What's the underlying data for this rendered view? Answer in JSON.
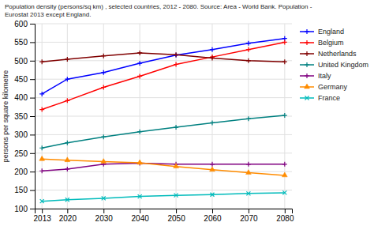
{
  "chart_data": {
    "type": "line",
    "title": "Population density (persons/sq km) , selected countries, 2012 - 2080. Source: Area - World Bank. Population -\nEurostat 2013 except England.",
    "ylabel": "persons per square kilometre",
    "x": [
      2013,
      2020,
      2030,
      2040,
      2050,
      2060,
      2070,
      2080
    ],
    "xlim": [
      2011,
      2082
    ],
    "xticks": [
      2013,
      2020,
      2030,
      2040,
      2050,
      2060,
      2070,
      2080
    ],
    "ylim": [
      100,
      600
    ],
    "yticks": [
      100,
      150,
      200,
      250,
      300,
      350,
      400,
      450,
      500,
      550,
      600
    ],
    "grid": true,
    "legend": "right",
    "series": [
      {
        "name": "England",
        "color": "#0000FF",
        "marker": "plus",
        "line_style": "solid",
        "values": [
          410,
          450,
          468,
          493,
          515,
          530,
          547,
          560
        ]
      },
      {
        "name": "Belgium",
        "color": "#FF0000",
        "marker": "plus",
        "line_style": "solid",
        "values": [
          368,
          392,
          428,
          458,
          490,
          510,
          530,
          550
        ]
      },
      {
        "name": "Netherlands",
        "color": "#800000",
        "marker": "plus",
        "line_style": "solid",
        "values": [
          497,
          504,
          513,
          521,
          516,
          507,
          500,
          497
        ]
      },
      {
        "name": "United Kingdom",
        "color": "#008080",
        "marker": "plus",
        "line_style": "solid",
        "values": [
          264,
          278,
          294,
          308,
          320,
          332,
          343,
          352
        ]
      },
      {
        "name": "Italy",
        "color": "#800080",
        "marker": "plus",
        "line_style": "solid",
        "values": [
          202,
          207,
          220,
          223,
          220,
          220,
          220,
          220
        ]
      },
      {
        "name": "Germany",
        "color": "#FF8C00",
        "marker": "triangle",
        "line_style": "solid",
        "values": [
          234,
          231,
          227,
          224,
          214,
          205,
          197,
          190
        ]
      },
      {
        "name": "France",
        "color": "#00BBBB",
        "marker": "cross",
        "line_style": "solid",
        "values": [
          120,
          124,
          128,
          133,
          136,
          138,
          141,
          143
        ]
      }
    ]
  }
}
